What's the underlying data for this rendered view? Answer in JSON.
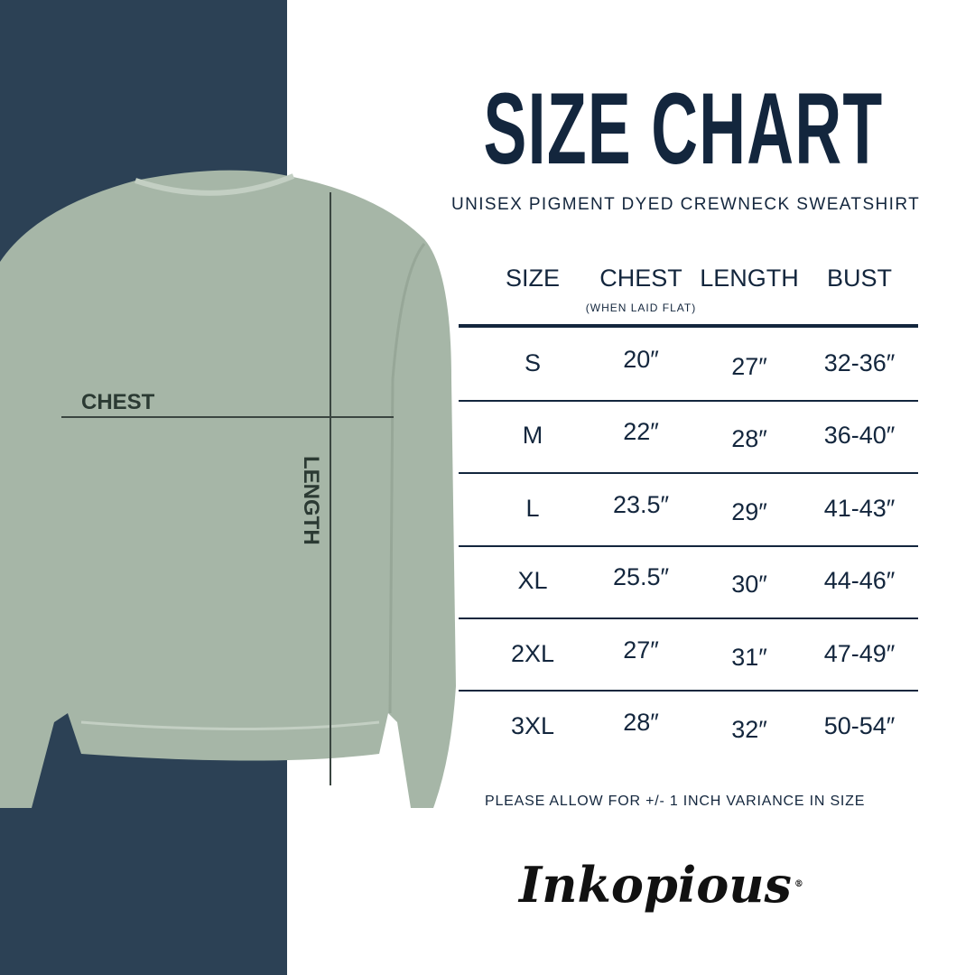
{
  "title": "SIZE CHART",
  "subtitle": "UNISEX PIGMENT DYED CREWNECK SWEATSHIRT",
  "measure_labels": {
    "chest": "CHEST",
    "length": "LENGTH"
  },
  "table": {
    "headers": [
      "SIZE",
      "CHEST",
      "LENGTH",
      "BUST"
    ],
    "chest_note": "(WHEN LAID FLAT)",
    "rows": [
      [
        "S",
        "20″",
        "27″",
        "32-36″"
      ],
      [
        "M",
        "22″",
        "28″",
        "36-40″"
      ],
      [
        "L",
        "23.5″",
        "29″",
        "41-43″"
      ],
      [
        "XL",
        "25.5″",
        "30″",
        "44-46″"
      ],
      [
        "2XL",
        "27″",
        "31″",
        "47-49″"
      ],
      [
        "3XL",
        "28″",
        "32″",
        "50-54″"
      ]
    ]
  },
  "note": "PLEASE ALLOW FOR +/- 1 INCH VARIANCE IN SIZE",
  "brand": "Inkopious",
  "colors": {
    "navy": "#2c4155",
    "text": "#13263d",
    "shirt": "#a6b6a7"
  }
}
